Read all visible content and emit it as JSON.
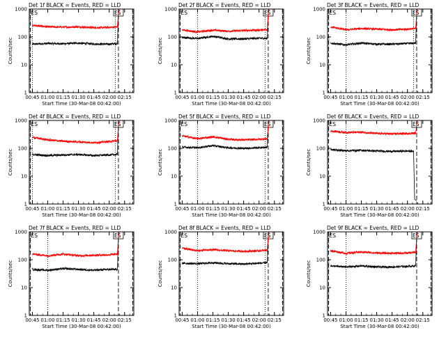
{
  "x_ticks": [
    "00:45",
    "01:00",
    "01:15",
    "01:30",
    "01:45",
    "02:00",
    "02:15"
  ],
  "y_ticks": [
    "1",
    "10",
    "100",
    "1000"
  ],
  "ylabel": "Counts/sec",
  "xlabel": "Start Time (30-Mar-08 00:42:00)",
  "colors": {
    "events": "#000000",
    "lld": "#ff0000"
  },
  "chart_data": [
    {
      "type": "line",
      "title": "Det 1f BLACK = Events, RED = LLD",
      "xlabel": "Start Time (30-Mar-08 00:42:00)",
      "ylabel": "Counts/sec",
      "yscale": "log",
      "ylim": [
        1,
        1000
      ],
      "xlim": [
        "00:42",
        "02:24"
      ],
      "tick_labels_x": [
        "00:45",
        "01:00",
        "01:15",
        "01:30",
        "01:45",
        "02:00",
        "02:15"
      ],
      "dotted_lines": [
        "00:45",
        "02:06"
      ],
      "dashed_lines": [
        "00:43",
        "02:09",
        "02:23"
      ],
      "box_label": "ES",
      "series": [
        {
          "name": "Events",
          "points": [
            [
              "00:45",
              55
            ],
            [
              "01:00",
              58
            ],
            [
              "01:15",
              57
            ],
            [
              "01:30",
              60
            ],
            [
              "01:45",
              56
            ],
            [
              "02:00",
              55
            ],
            [
              "02:08",
              58
            ],
            [
              "02:09",
              700
            ],
            [
              "02:10",
              1000
            ]
          ]
        },
        {
          "name": "LLD",
          "points": [
            [
              "00:45",
              260
            ],
            [
              "01:00",
              230
            ],
            [
              "01:15",
              225
            ],
            [
              "01:30",
              230
            ],
            [
              "01:45",
              215
            ],
            [
              "02:00",
              220
            ],
            [
              "02:08",
              230
            ],
            [
              "02:09",
              700
            ],
            [
              "02:10",
              1000
            ]
          ]
        }
      ]
    },
    {
      "type": "line",
      "title": "Det 2f BLACK = Events, RED = LLD",
      "xlabel": "Start Time (30-Mar-08 00:42:00)",
      "ylabel": "Counts/sec",
      "yscale": "log",
      "ylim": [
        1,
        1000
      ],
      "xlim": [
        "00:42",
        "02:24"
      ],
      "tick_labels_x": [
        "00:45",
        "01:00",
        "01:15",
        "01:30",
        "01:45",
        "02:00",
        "02:15"
      ],
      "dotted_lines": [
        "01:00",
        "02:06"
      ],
      "dashed_lines": [
        "00:43",
        "02:09",
        "02:23"
      ],
      "box_label": "ES",
      "series": [
        {
          "name": "Events",
          "points": [
            [
              "00:45",
              95
            ],
            [
              "01:00",
              88
            ],
            [
              "01:15",
              105
            ],
            [
              "01:30",
              85
            ],
            [
              "01:45",
              85
            ],
            [
              "02:00",
              90
            ],
            [
              "02:08",
              88
            ],
            [
              "02:09",
              700
            ],
            [
              "02:10",
              1000
            ]
          ]
        },
        {
          "name": "LLD",
          "points": [
            [
              "00:45",
              180
            ],
            [
              "01:00",
              150
            ],
            [
              "01:15",
              175
            ],
            [
              "01:30",
              160
            ],
            [
              "01:45",
              170
            ],
            [
              "02:00",
              175
            ],
            [
              "02:08",
              180
            ],
            [
              "02:09",
              700
            ],
            [
              "02:10",
              1000
            ]
          ]
        }
      ]
    },
    {
      "type": "line",
      "title": "Det 3f BLACK = Events, RED = LLD",
      "xlabel": "Start Time (30-Mar-08 00:42:00)",
      "ylabel": "Counts/sec",
      "yscale": "log",
      "ylim": [
        1,
        1000
      ],
      "xlim": [
        "00:42",
        "02:24"
      ],
      "tick_labels_x": [
        "00:45",
        "01:00",
        "01:15",
        "01:30",
        "01:45",
        "02:00",
        "02:15"
      ],
      "dotted_lines": [
        "01:00",
        "02:06"
      ],
      "dashed_lines": [
        "00:43",
        "02:09",
        "02:23"
      ],
      "box_label": "ES",
      "series": [
        {
          "name": "Events",
          "points": [
            [
              "00:45",
              60
            ],
            [
              "01:00",
              52
            ],
            [
              "01:15",
              60
            ],
            [
              "01:30",
              55
            ],
            [
              "01:45",
              55
            ],
            [
              "02:00",
              58
            ],
            [
              "02:08",
              60
            ],
            [
              "02:09",
              700
            ],
            [
              "02:10",
              1000
            ]
          ]
        },
        {
          "name": "LLD",
          "points": [
            [
              "00:45",
              230
            ],
            [
              "01:00",
              180
            ],
            [
              "01:15",
              200
            ],
            [
              "01:30",
              190
            ],
            [
              "01:45",
              180
            ],
            [
              "02:00",
              190
            ],
            [
              "02:08",
              200
            ],
            [
              "02:09",
              700
            ],
            [
              "02:10",
              1000
            ]
          ]
        }
      ]
    },
    {
      "type": "line",
      "title": "Det 4f BLACK = Events, RED = LLD",
      "xlabel": "Start Time (30-Mar-08 00:42:00)",
      "ylabel": "Counts/sec",
      "yscale": "log",
      "ylim": [
        1,
        1000
      ],
      "xlim": [
        "00:42",
        "02:24"
      ],
      "tick_labels_x": [
        "00:45",
        "01:00",
        "01:15",
        "01:30",
        "01:45",
        "02:00",
        "02:15"
      ],
      "dotted_lines": [
        "00:45",
        "02:06"
      ],
      "dashed_lines": [
        "00:43",
        "02:09",
        "02:23"
      ],
      "box_label": "ES",
      "series": [
        {
          "name": "Events",
          "points": [
            [
              "00:45",
              60
            ],
            [
              "01:00",
              55
            ],
            [
              "01:15",
              58
            ],
            [
              "01:30",
              60
            ],
            [
              "01:45",
              55
            ],
            [
              "02:00",
              58
            ],
            [
              "02:08",
              60
            ],
            [
              "02:09",
              700
            ],
            [
              "02:10",
              1000
            ]
          ]
        },
        {
          "name": "LLD",
          "points": [
            [
              "00:45",
              250
            ],
            [
              "01:00",
              200
            ],
            [
              "01:15",
              180
            ],
            [
              "01:30",
              170
            ],
            [
              "01:45",
              160
            ],
            [
              "02:00",
              175
            ],
            [
              "02:08",
              190
            ],
            [
              "02:09",
              700
            ],
            [
              "02:10",
              1000
            ]
          ]
        }
      ]
    },
    {
      "type": "line",
      "title": "Det 5f BLACK = Events, RED = LLD",
      "xlabel": "Start Time (30-Mar-08 00:42:00)",
      "ylabel": "Counts/sec",
      "yscale": "log",
      "ylim": [
        1,
        1000
      ],
      "xlim": [
        "00:42",
        "02:24"
      ],
      "tick_labels_x": [
        "00:45",
        "01:00",
        "01:15",
        "01:30",
        "01:45",
        "02:00",
        "02:15"
      ],
      "dotted_lines": [
        "01:00",
        "02:06"
      ],
      "dashed_lines": [
        "00:43",
        "02:09",
        "02:23"
      ],
      "box_label": "ES",
      "series": [
        {
          "name": "Events",
          "points": [
            [
              "00:45",
              110
            ],
            [
              "01:00",
              105
            ],
            [
              "01:15",
              125
            ],
            [
              "01:30",
              105
            ],
            [
              "01:45",
              100
            ],
            [
              "02:00",
              105
            ],
            [
              "02:08",
              110
            ],
            [
              "02:09",
              700
            ],
            [
              "02:10",
              1000
            ]
          ]
        },
        {
          "name": "LLD",
          "points": [
            [
              "00:45",
              280
            ],
            [
              "01:00",
              220
            ],
            [
              "01:15",
              260
            ],
            [
              "01:30",
              210
            ],
            [
              "01:45",
              200
            ],
            [
              "02:00",
              210
            ],
            [
              "02:08",
              220
            ],
            [
              "02:09",
              700
            ],
            [
              "02:10",
              1000
            ]
          ]
        }
      ]
    },
    {
      "type": "line",
      "title": "Det 6f BLACK = Events, RED = LLD",
      "xlabel": "Start Time (30-Mar-08 00:42:00)",
      "ylabel": "Counts/sec",
      "yscale": "log",
      "ylim": [
        1,
        1000
      ],
      "xlim": [
        "00:42",
        "02:24"
      ],
      "tick_labels_x": [
        "00:45",
        "01:00",
        "01:15",
        "01:30",
        "01:45",
        "02:00",
        "02:15"
      ],
      "dotted_lines": [
        "01:00"
      ],
      "dashed_lines": [
        "00:43",
        "02:09",
        "02:23"
      ],
      "box_label": "ES",
      "series": [
        {
          "name": "Events",
          "points": [
            [
              "00:45",
              90
            ],
            [
              "01:00",
              82
            ],
            [
              "01:15",
              85
            ],
            [
              "01:30",
              80
            ],
            [
              "01:45",
              78
            ],
            [
              "02:00",
              80
            ],
            [
              "02:06",
              78
            ],
            [
              "02:07",
              1.5
            ],
            [
              "02:09",
              1.3
            ]
          ]
        },
        {
          "name": "LLD",
          "points": [
            [
              "00:45",
              420
            ],
            [
              "01:00",
              370
            ],
            [
              "01:15",
              380
            ],
            [
              "01:30",
              340
            ],
            [
              "01:45",
              330
            ],
            [
              "02:00",
              340
            ],
            [
              "02:08",
              350
            ],
            [
              "02:09",
              700
            ],
            [
              "02:10",
              1000
            ]
          ]
        }
      ]
    },
    {
      "type": "line",
      "title": "Det 7f BLACK = Events, RED = LLD",
      "xlabel": "Start Time (30-Mar-08 00:42:00)",
      "ylabel": "Counts/sec",
      "yscale": "log",
      "ylim": [
        1,
        1000
      ],
      "xlim": [
        "00:42",
        "02:24"
      ],
      "tick_labels_x": [
        "00:45",
        "01:00",
        "01:15",
        "01:30",
        "01:45",
        "02:00",
        "02:15"
      ],
      "dotted_lines": [
        "01:00"
      ],
      "dashed_lines": [
        "00:43",
        "02:09",
        "02:23"
      ],
      "box_label": "ES",
      "series": [
        {
          "name": "Events",
          "points": [
            [
              "00:45",
              45
            ],
            [
              "01:00",
              42
            ],
            [
              "01:15",
              48
            ],
            [
              "01:30",
              45
            ],
            [
              "01:45",
              42
            ],
            [
              "02:00",
              45
            ],
            [
              "02:08",
              45
            ],
            [
              "02:09",
              700
            ],
            [
              "02:10",
              1000
            ]
          ]
        },
        {
          "name": "LLD",
          "points": [
            [
              "00:45",
              160
            ],
            [
              "01:00",
              140
            ],
            [
              "01:15",
              160
            ],
            [
              "01:30",
              140
            ],
            [
              "01:45",
              145
            ],
            [
              "02:00",
              150
            ],
            [
              "02:08",
              160
            ],
            [
              "02:09",
              700
            ],
            [
              "02:10",
              1000
            ]
          ]
        }
      ]
    },
    {
      "type": "line",
      "title": "Det 8f BLACK = Events, RED = LLD",
      "xlabel": "Start Time (30-Mar-08 00:42:00)",
      "ylabel": "Counts/sec",
      "yscale": "log",
      "ylim": [
        1,
        1000
      ],
      "xlim": [
        "00:42",
        "02:24"
      ],
      "tick_labels_x": [
        "00:45",
        "01:00",
        "01:15",
        "01:30",
        "01:45",
        "02:00",
        "02:15"
      ],
      "dotted_lines": [
        "01:00",
        "02:06"
      ],
      "dashed_lines": [
        "00:43",
        "02:09",
        "02:23"
      ],
      "box_label": "ES",
      "series": [
        {
          "name": "Events",
          "points": [
            [
              "00:45",
              75
            ],
            [
              "01:00",
              72
            ],
            [
              "01:15",
              78
            ],
            [
              "01:30",
              72
            ],
            [
              "01:45",
              70
            ],
            [
              "02:00",
              75
            ],
            [
              "02:08",
              78
            ],
            [
              "02:09",
              700
            ],
            [
              "02:10",
              1000
            ]
          ]
        },
        {
          "name": "LLD",
          "points": [
            [
              "00:45",
              260
            ],
            [
              "01:00",
              210
            ],
            [
              "01:15",
              230
            ],
            [
              "01:30",
              210
            ],
            [
              "01:45",
              200
            ],
            [
              "02:00",
              210
            ],
            [
              "02:08",
              220
            ],
            [
              "02:09",
              700
            ],
            [
              "02:10",
              1000
            ]
          ]
        }
      ]
    },
    {
      "type": "line",
      "title": "Det 9f BLACK = Events, RED = LLD",
      "xlabel": "Start Time (30-Mar-08 00:42:00)",
      "ylabel": "Counts/sec",
      "yscale": "log",
      "ylim": [
        1,
        1000
      ],
      "xlim": [
        "00:42",
        "02:24"
      ],
      "tick_labels_x": [
        "00:45",
        "01:00",
        "01:15",
        "01:30",
        "01:45",
        "02:00",
        "02:15"
      ],
      "dotted_lines": [
        "01:00"
      ],
      "dashed_lines": [
        "00:43",
        "02:09",
        "02:23"
      ],
      "box_label": "ES",
      "series": [
        {
          "name": "Events",
          "points": [
            [
              "00:45",
              60
            ],
            [
              "01:00",
              55
            ],
            [
              "01:15",
              60
            ],
            [
              "01:30",
              55
            ],
            [
              "01:45",
              55
            ],
            [
              "02:00",
              58
            ],
            [
              "02:08",
              60
            ],
            [
              "02:09",
              700
            ],
            [
              "02:10",
              1000
            ]
          ]
        },
        {
          "name": "LLD",
          "points": [
            [
              "00:45",
              210
            ],
            [
              "01:00",
              170
            ],
            [
              "01:15",
              190
            ],
            [
              "01:30",
              175
            ],
            [
              "01:45",
              170
            ],
            [
              "02:00",
              175
            ],
            [
              "02:08",
              185
            ],
            [
              "02:09",
              700
            ],
            [
              "02:10",
              1000
            ]
          ]
        }
      ]
    }
  ]
}
